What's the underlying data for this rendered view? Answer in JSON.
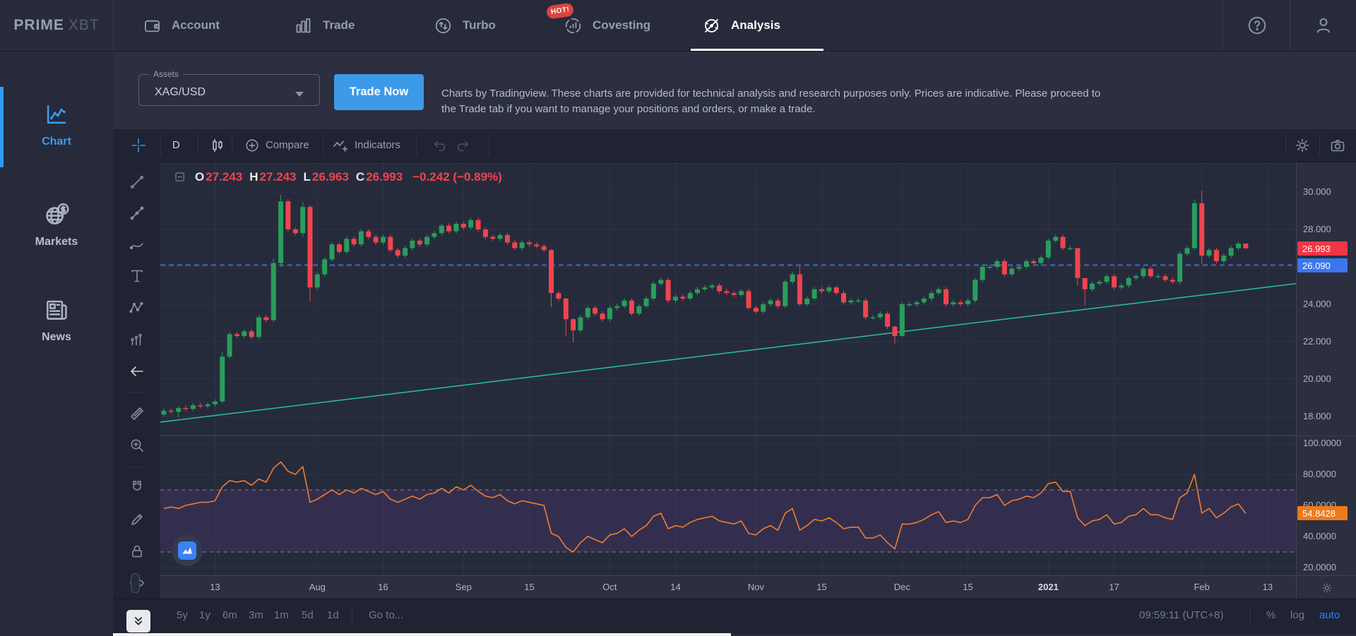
{
  "nav": {
    "logo_prime": "PRIME",
    "logo_xbt": "XBT",
    "items": [
      {
        "label": "Account",
        "icon": "wallet-icon"
      },
      {
        "label": "Trade",
        "icon": "bar-chart-icon"
      },
      {
        "label": "Turbo",
        "icon": "turbo-icon"
      },
      {
        "label": "Covesting",
        "icon": "covesting-icon",
        "badge": "HOT!"
      },
      {
        "label": "Analysis",
        "icon": "gauge-icon",
        "active": true
      }
    ],
    "help_icon": "help-icon",
    "profile_icon": "user-icon"
  },
  "sidebar": {
    "items": [
      {
        "label": "Chart",
        "icon": "line-chart-icon",
        "active": true
      },
      {
        "label": "Markets",
        "icon": "globe-dollar-icon"
      },
      {
        "label": "News",
        "icon": "newspaper-icon"
      }
    ]
  },
  "assets_panel": {
    "label": "Assets",
    "value": "XAG/USD",
    "trade_button": "Trade Now",
    "disclaimer": "Charts by Tradingview. These charts are provided for technical analysis and research purposes only. Prices are indicative. Please proceed to the Trade tab if you want to manage your positions and orders, or make a trade."
  },
  "chart_toolbar": {
    "interval": "D",
    "compare": "Compare",
    "indicators": "Indicators"
  },
  "legend": {
    "items": [
      {
        "k": "O",
        "v": "27.243"
      },
      {
        "k": "H",
        "v": "27.243"
      },
      {
        "k": "L",
        "v": "26.963"
      },
      {
        "k": "C",
        "v": "26.993"
      }
    ],
    "change": "−0.242 (−0.89%)"
  },
  "price_scale": {
    "last_badge": "26.993",
    "hline_badge": "26.090",
    "rsi_badge": "54.8428"
  },
  "bottom_toolbar": {
    "ranges": [
      "5y",
      "1y",
      "6m",
      "3m",
      "1m",
      "5d",
      "1d"
    ],
    "goto": "Go to...",
    "clock": "09:59:11 (UTC+8)",
    "percent": "%",
    "log": "log",
    "auto": "auto"
  },
  "chart_data": {
    "type": "candlestick+rsi",
    "symbol": "XAG/USD",
    "interval": "D",
    "legend_last": {
      "open": 27.243,
      "high": 27.243,
      "low": 26.963,
      "close": 26.993,
      "change": -0.242,
      "change_pct": -0.89
    },
    "price_grid": [
      30,
      28,
      26,
      24,
      22,
      20,
      18
    ],
    "price_ticks": [
      {
        "v": 30,
        "label": "30.000"
      },
      {
        "v": 28,
        "label": "28.000"
      },
      {
        "v": 24,
        "label": "24.000"
      },
      {
        "v": 22,
        "label": "22.000"
      },
      {
        "v": 20,
        "label": "20.000"
      },
      {
        "v": 18,
        "label": "18.000"
      }
    ],
    "rsi_grid": [
      100,
      80,
      60,
      40,
      20
    ],
    "rsi_ticks": [
      {
        "v": 100,
        "label": "100.0000"
      },
      {
        "v": 80,
        "label": "80.0000"
      },
      {
        "v": 60,
        "label": "60.0000"
      },
      {
        "v": 40,
        "label": "40.0000"
      },
      {
        "v": 20,
        "label": "20.0000"
      }
    ],
    "time_ticks": [
      {
        "i": 7,
        "label": "13"
      },
      {
        "i": 21,
        "label": "Aug"
      },
      {
        "i": 30,
        "label": "16"
      },
      {
        "i": 41,
        "label": "Sep"
      },
      {
        "i": 50,
        "label": "15"
      },
      {
        "i": 61,
        "label": "Oct"
      },
      {
        "i": 70,
        "label": "14"
      },
      {
        "i": 81,
        "label": "Nov"
      },
      {
        "i": 90,
        "label": "15"
      },
      {
        "i": 101,
        "label": "Dec"
      },
      {
        "i": 110,
        "label": "15"
      },
      {
        "i": 121,
        "label": "2021",
        "b": 1
      },
      {
        "i": 130,
        "label": "17"
      },
      {
        "i": 142,
        "label": "Feb"
      },
      {
        "i": 151,
        "label": "13"
      }
    ],
    "first_open": 18.1,
    "closes": [
      18.3,
      18.25,
      18.45,
      18.4,
      18.6,
      18.55,
      18.65,
      18.8,
      21.2,
      22.4,
      22.3,
      22.55,
      22.25,
      23.3,
      23.15,
      26.2,
      29.5,
      28.0,
      27.8,
      29.2,
      24.9,
      25.6,
      26.4,
      27.2,
      26.8,
      27.5,
      27.2,
      27.9,
      27.6,
      27.3,
      27.6,
      26.9,
      26.6,
      27.0,
      27.4,
      27.2,
      27.6,
      27.8,
      28.2,
      27.9,
      28.3,
      28.1,
      28.5,
      28.0,
      27.6,
      27.5,
      27.7,
      27.3,
      27.0,
      27.3,
      27.2,
      27.1,
      26.9,
      24.6,
      24.3,
      23.2,
      22.6,
      23.3,
      23.8,
      23.5,
      23.2,
      23.8,
      23.9,
      24.2,
      23.5,
      23.9,
      24.3,
      25.1,
      25.3,
      24.2,
      24.4,
      24.3,
      24.6,
      24.8,
      24.9,
      25.0,
      24.7,
      24.6,
      24.5,
      24.7,
      23.8,
      23.6,
      24.0,
      24.2,
      23.9,
      25.2,
      25.6,
      24.0,
      24.3,
      24.8,
      24.7,
      24.9,
      24.6,
      24.1,
      24.2,
      24.2,
      23.3,
      23.3,
      23.5,
      22.8,
      22.3,
      24.0,
      24.0,
      24.1,
      24.3,
      24.6,
      24.8,
      24.0,
      24.1,
      24.0,
      24.2,
      25.3,
      26.0,
      26.0,
      26.3,
      25.6,
      25.9,
      26.0,
      26.3,
      26.2,
      26.5,
      27.4,
      27.6,
      27.0,
      27.0,
      25.4,
      24.8,
      25.1,
      25.2,
      25.5,
      24.9,
      25.0,
      25.4,
      25.5,
      25.9,
      25.5,
      25.5,
      25.3,
      25.2,
      26.7,
      27.0,
      29.4,
      26.6,
      26.9,
      26.3,
      26.6,
      27.0,
      27.243,
      26.993
    ],
    "wick_overrides": {
      "2": [
        18.55,
        17.95
      ],
      "8": [
        21.45,
        18.7
      ],
      "15": [
        26.45,
        23.05
      ],
      "16": [
        29.85,
        26.0
      ],
      "19": [
        29.45,
        27.6
      ],
      "20": [
        29.3,
        24.15
      ],
      "53": [
        26.95,
        23.85
      ],
      "55": [
        24.35,
        22.3
      ],
      "56": [
        23.25,
        21.95
      ],
      "85": [
        25.3,
        23.8
      ],
      "87": [
        26.05,
        23.9
      ],
      "100": [
        22.85,
        21.9
      ],
      "101": [
        24.1,
        22.25
      ],
      "125": [
        27.0,
        25.0
      ],
      "126": [
        25.3,
        23.95
      ],
      "141": [
        29.6,
        26.9
      ],
      "142": [
        30.06,
        26.15
      ],
      "148": [
        27.243,
        26.963
      ]
    },
    "trend_line": {
      "left_price": 17.7,
      "right_price": 25.1,
      "color": "#2bbfa3"
    },
    "hline": {
      "price": 26.09,
      "style": "dashed",
      "color": "#3c78f0"
    },
    "rsi": {
      "upper_band": 70,
      "lower_band": 30,
      "last": 54.8428,
      "values": [
        58,
        59,
        58,
        60,
        61,
        62,
        62,
        63,
        72,
        76,
        75,
        76,
        73,
        77,
        75,
        84,
        88,
        82,
        80,
        85,
        62,
        64,
        67,
        70,
        67,
        70,
        68,
        71,
        69,
        67,
        69,
        64,
        62,
        64,
        66,
        64,
        67,
        68,
        71,
        68,
        72,
        70,
        73,
        69,
        66,
        65,
        67,
        63,
        61,
        63,
        62,
        61,
        60,
        42,
        40,
        33,
        30,
        36,
        40,
        38,
        36,
        41,
        42,
        45,
        40,
        44,
        47,
        53,
        55,
        45,
        47,
        46,
        49,
        51,
        52,
        53,
        50,
        49,
        48,
        50,
        42,
        41,
        45,
        47,
        44,
        55,
        58,
        44,
        47,
        51,
        50,
        52,
        49,
        45,
        46,
        46,
        39,
        39,
        41,
        36,
        32,
        48,
        48,
        49,
        51,
        54,
        56,
        49,
        50,
        49,
        51,
        60,
        65,
        65,
        67,
        60,
        63,
        64,
        66,
        65,
        68,
        74,
        75,
        69,
        69,
        52,
        47,
        50,
        51,
        54,
        48,
        49,
        53,
        54,
        58,
        54,
        54,
        52,
        51,
        65,
        68,
        80,
        55,
        58,
        52,
        55,
        59,
        61,
        54.84
      ]
    }
  },
  "colors": {
    "accent_blue": "#3b9ded",
    "up_candle": "#2a9d5a",
    "down_candle": "#f0444e",
    "badge_red": "#f23645",
    "badge_blue": "#3b76f0",
    "badge_orange": "#ef7a1a",
    "rsi_line": "#ef7d32",
    "trend_line": "#2bbfa3",
    "hline_blue": "#3c78f0",
    "pane_bg": "#262b3c",
    "grid": "#2e3347",
    "band_fill": "rgba(126,60,166,0.16)"
  }
}
